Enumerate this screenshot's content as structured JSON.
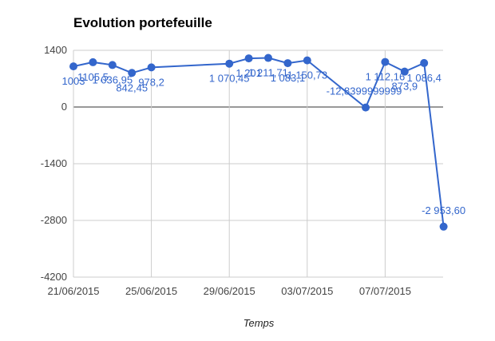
{
  "chart_data": {
    "type": "line",
    "title": "Evolution portefeuille",
    "xlabel": "Temps",
    "ylabel": "",
    "ylim": [
      -4200,
      1400
    ],
    "y_ticks": [
      1400,
      0,
      -1400,
      -2800,
      -4200
    ],
    "y_tick_labels": [
      "1400",
      "0",
      "-1400",
      "-2800",
      "-4200"
    ],
    "x_ticks": [
      "2015-06-21",
      "2015-06-25",
      "2015-06-29",
      "2015-07-03",
      "2015-07-07"
    ],
    "x_tick_labels": [
      "21/06/2015",
      "25/06/2015",
      "29/06/2015",
      "03/07/2015",
      "07/07/2015"
    ],
    "xlim": [
      "2015-06-21",
      "2015-07-10"
    ],
    "grid": true,
    "legend": "none",
    "colors": {
      "series": "#3366cc",
      "grid": "#cccccc",
      "baseline": "#333333"
    },
    "series": [
      {
        "points": [
          {
            "x": "2015-06-21",
            "y": 1003,
            "label": "1003"
          },
          {
            "x": "2015-06-22",
            "y": 1105.5,
            "label": "1105,5"
          },
          {
            "x": "2015-06-23",
            "y": 1036.95,
            "label": "1 036,95"
          },
          {
            "x": "2015-06-24",
            "y": 842.45,
            "label": "842,45"
          },
          {
            "x": "2015-06-25",
            "y": 978.2,
            "label": "978,2"
          },
          {
            "x": "2015-06-29",
            "y": 1070.45,
            "label": "1 070,45"
          },
          {
            "x": "2015-06-30",
            "y": 1201,
            "label": "1 201"
          },
          {
            "x": "2015-07-01",
            "y": 1211.71,
            "label": "1 211,71"
          },
          {
            "x": "2015-07-02",
            "y": 1083.1,
            "label": "1 083,1"
          },
          {
            "x": "2015-07-03",
            "y": 1150.73,
            "label": "1 150,73"
          },
          {
            "x": "2015-07-06",
            "y": -12.84,
            "label": "-12,8399999999"
          },
          {
            "x": "2015-07-07",
            "y": 1112.16,
            "label": "1 112,16"
          },
          {
            "x": "2015-07-08",
            "y": 873.9,
            "label": "873,9"
          },
          {
            "x": "2015-07-09",
            "y": 1086.4,
            "label": "1 086,4"
          },
          {
            "x": "2015-07-10",
            "y": -2953.6,
            "label": "-2 953,60"
          }
        ]
      }
    ]
  }
}
